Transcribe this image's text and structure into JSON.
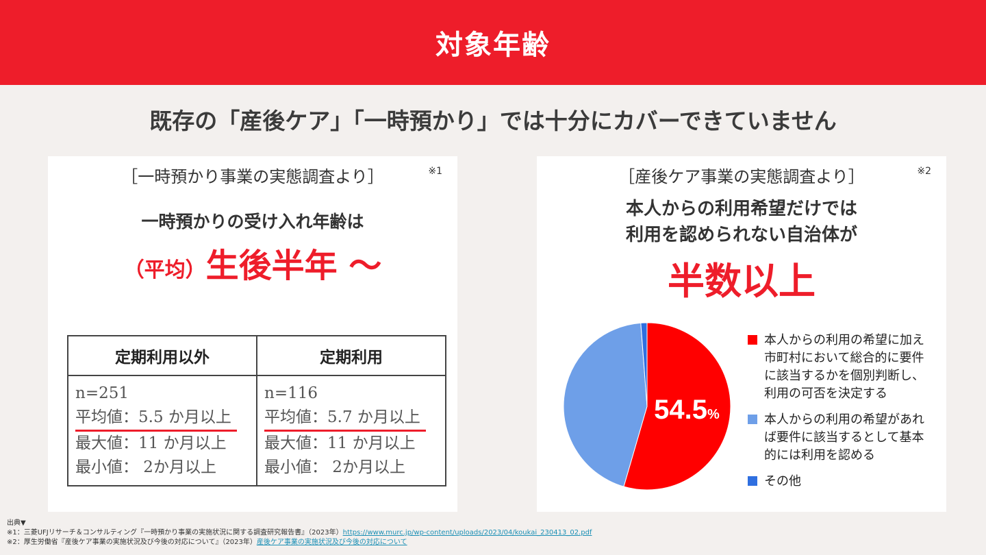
{
  "header": {
    "title": "対象年齢"
  },
  "subtitle": "既存の「産後ケア」「一時預かり」では十分にカバーできていません",
  "left_panel": {
    "heading": "［一時預かり事業の実態調査より］",
    "note_mark": "※1",
    "lead": "一時預かりの受け入れ年齢は",
    "highlight_prefix": "（平均）",
    "highlight_main": "生後半年 〜",
    "table": {
      "columns": [
        "定期利用以外",
        "定期利用"
      ],
      "rows": [
        {
          "n": "n=251",
          "avg": "平均値：5.5 か月以上",
          "max": "最大値：11 か月以上",
          "min": "最小値： 2か月以上"
        },
        {
          "n": "n=116",
          "avg": "平均値：5.7 か月以上",
          "max": "最大値：11 か月以上",
          "min": "最小値： 2か月以上"
        }
      ]
    }
  },
  "right_panel": {
    "heading": "［産後ケア事業の実態調査より］",
    "note_mark": "※2",
    "lead_line1": "本人からの利用希望だけでは",
    "lead_line2": "利用を認められない自治体が",
    "highlight": "半数以上"
  },
  "chart_data": {
    "type": "pie",
    "slices": [
      {
        "label": "本人からの利用の希望に加え市町村において総合的に要件に該当するかを個別判断し、利用の可否を決定する",
        "value": 54.5,
        "color": "#ff0000"
      },
      {
        "label": "本人からの利用の希望があれば要件に該当するとして基本的には利用を認める",
        "value": 44.3,
        "color": "#6e9fe8"
      },
      {
        "label": "その他",
        "value": 1.2,
        "color": "#2f6fe0"
      }
    ],
    "data_label_value": "54.5",
    "data_label_unit": "%"
  },
  "sources": {
    "heading": "出典▼",
    "line1_text": "※1：三菱UFJリサーチ＆コンサルティング『一時預かり事業の実施状況に関する調査研究報告書』（2023年）",
    "line1_link": "https://www.murc.jp/wp-content/uploads/2023/04/koukai_230413_02.pdf",
    "line2_text": "※2：厚生労働省『産後ケア事業の実施状況及び今後の対応について』（2023年）",
    "line2_link": "産後ケア事業の実施状況及び今後の対応について"
  }
}
